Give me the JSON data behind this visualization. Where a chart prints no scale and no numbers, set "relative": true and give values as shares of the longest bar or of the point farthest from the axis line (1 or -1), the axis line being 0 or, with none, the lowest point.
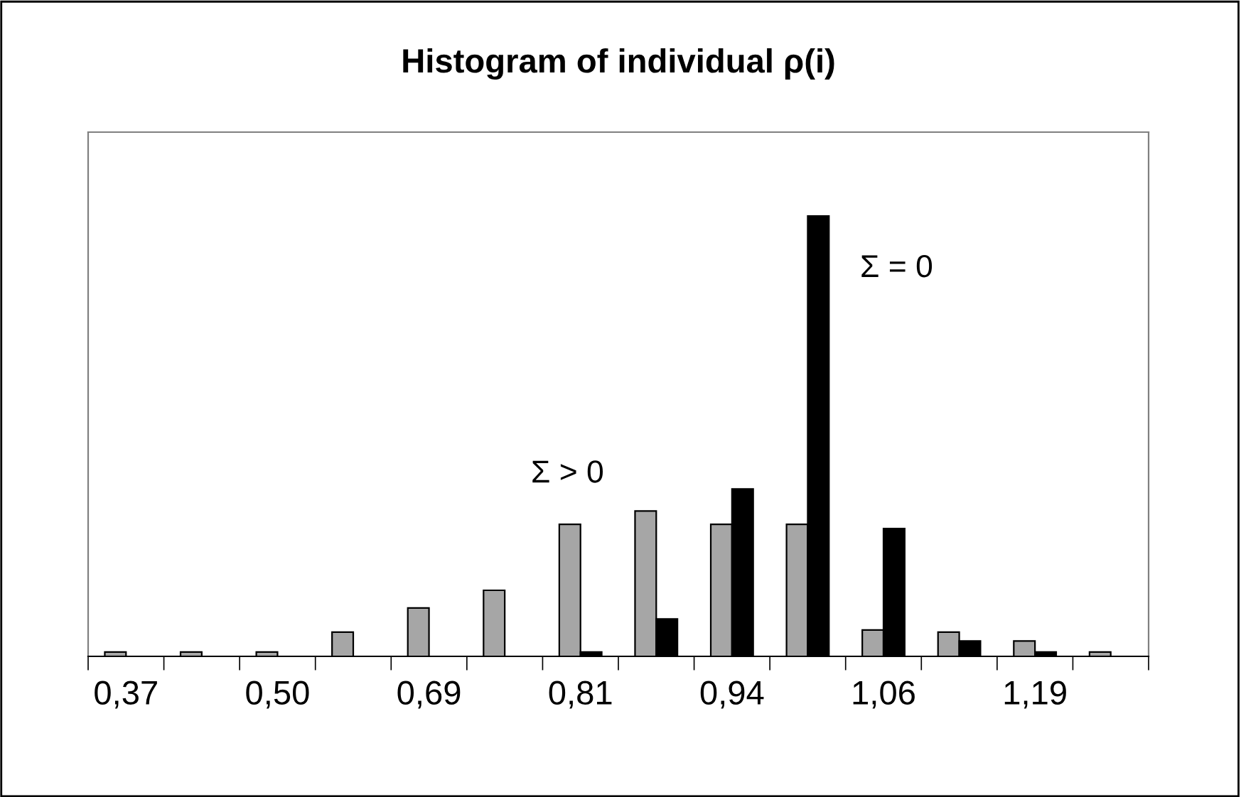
{
  "chart_data": {
    "type": "bar",
    "title": "Histogram of individual ρ(i)",
    "relative": true,
    "categories": [
      "0,37",
      null,
      "0,50",
      null,
      "0,69",
      null,
      "0,81",
      null,
      "0,94",
      null,
      "1,06",
      null,
      "1,19",
      null
    ],
    "series": [
      {
        "name": "Σ > 0",
        "color": "#a6a6a6",
        "values": [
          0.01,
          0.01,
          0.01,
          0.055,
          0.11,
          0.15,
          0.3,
          0.33,
          0.3,
          0.3,
          0.06,
          0.055,
          0.035,
          0.01
        ]
      },
      {
        "name": "Σ = 0",
        "color": "#000000",
        "values": [
          0,
          0,
          0,
          0,
          0,
          0,
          0.01,
          0.085,
          0.38,
          1,
          0.29,
          0.035,
          0.01,
          0
        ]
      }
    ],
    "grid": false,
    "legend": false
  }
}
